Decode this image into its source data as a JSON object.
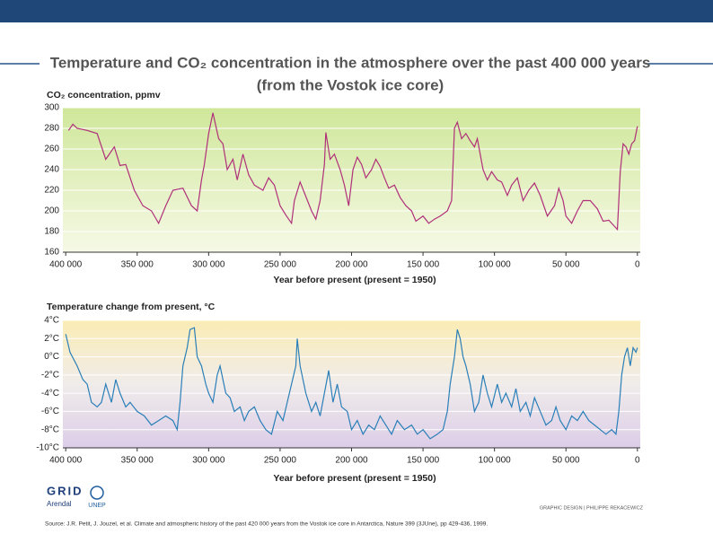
{
  "header": {
    "title": "Temperature and CO₂ concentration in the atmosphere over the past 400 000 years",
    "subtitle": "(from the Vostok ice core)"
  },
  "chart_data": [
    {
      "type": "line",
      "y_label": "CO₂ concentration, ppmv",
      "x_label": "Year before present (present = 1950)",
      "color": "#b0307a",
      "grid": true,
      "xlim": [
        402000,
        -2000
      ],
      "ylim": [
        160,
        300
      ],
      "xticks": [
        {
          "value": 400000,
          "label": "400 000"
        },
        {
          "value": 350000,
          "label": "350 000"
        },
        {
          "value": 300000,
          "label": "300 000"
        },
        {
          "value": 250000,
          "label": "250 000"
        },
        {
          "value": 200000,
          "label": "200 000"
        },
        {
          "value": 150000,
          "label": "150 000"
        },
        {
          "value": 100000,
          "label": "100 000"
        },
        {
          "value": 50000,
          "label": "50 000"
        },
        0
      ],
      "yticks": [
        160,
        180,
        200,
        220,
        240,
        260,
        280,
        300
      ],
      "x": [
        398000,
        395000,
        392000,
        385000,
        378000,
        372000,
        366000,
        362000,
        358000,
        352000,
        346000,
        340000,
        335000,
        330000,
        325000,
        318000,
        312000,
        308000,
        305000,
        303000,
        300000,
        297000,
        293000,
        290000,
        287000,
        283000,
        280000,
        276000,
        272000,
        268000,
        262000,
        258000,
        254000,
        250000,
        246000,
        242000,
        240000,
        236000,
        232000,
        228000,
        225000,
        222000,
        219000,
        218000,
        215000,
        212000,
        208000,
        205000,
        202000,
        199000,
        196000,
        193000,
        190000,
        186000,
        183000,
        180000,
        177000,
        174000,
        170000,
        166000,
        162000,
        158000,
        155000,
        150000,
        146000,
        142000,
        138000,
        133000,
        130000,
        128000,
        126000,
        123000,
        120000,
        117000,
        114000,
        112000,
        108000,
        105000,
        102000,
        98000,
        95000,
        91000,
        88000,
        84000,
        80000,
        76000,
        72000,
        68000,
        63000,
        58000,
        55000,
        52000,
        50000,
        46000,
        42000,
        38000,
        33000,
        28000,
        24000,
        20000,
        16000,
        14000,
        12000,
        10000,
        8000,
        6000,
        4000,
        2000,
        0
      ],
      "values": [
        278,
        284,
        280,
        278,
        275,
        250,
        262,
        244,
        245,
        220,
        205,
        200,
        188,
        205,
        220,
        222,
        205,
        200,
        230,
        245,
        275,
        295,
        270,
        265,
        240,
        250,
        230,
        255,
        235,
        225,
        220,
        232,
        225,
        205,
        196,
        188,
        210,
        228,
        214,
        200,
        192,
        210,
        245,
        276,
        250,
        255,
        240,
        225,
        205,
        240,
        252,
        245,
        232,
        240,
        250,
        243,
        232,
        222,
        225,
        213,
        205,
        200,
        190,
        195,
        188,
        192,
        195,
        200,
        210,
        280,
        286,
        270,
        275,
        268,
        262,
        270,
        240,
        230,
        238,
        230,
        228,
        215,
        225,
        232,
        210,
        220,
        227,
        215,
        195,
        205,
        222,
        210,
        195,
        188,
        200,
        210,
        210,
        202,
        190,
        191,
        185,
        182,
        238,
        265,
        262,
        255,
        265,
        268,
        282
      ]
    },
    {
      "type": "line",
      "y_label": "Temperature change from present, °C",
      "x_label": "Year before present (present = 1950)",
      "color": "#2a7fb8",
      "grid": true,
      "xlim": [
        402000,
        -2000
      ],
      "ylim": [
        -10,
        4
      ],
      "xticks": [
        {
          "value": 400000,
          "label": "400 000"
        },
        {
          "value": 350000,
          "label": "350 000"
        },
        {
          "value": 300000,
          "label": "300 000"
        },
        {
          "value": 250000,
          "label": "250 000"
        },
        {
          "value": 200000,
          "label": "200 000"
        },
        {
          "value": 150000,
          "label": "150 000"
        },
        {
          "value": 100000,
          "label": "100 000"
        },
        {
          "value": 50000,
          "label": "50 000"
        },
        0
      ],
      "yticks": [
        {
          "value": 4,
          "label": "4°C"
        },
        {
          "value": 2,
          "label": "2°C"
        },
        {
          "value": 0,
          "label": "0°C"
        },
        {
          "value": -2,
          "label": "-2°C"
        },
        {
          "value": -4,
          "label": "-4°C"
        },
        {
          "value": -6,
          "label": "-6°C"
        },
        {
          "value": -8,
          "label": "-8°C"
        },
        {
          "value": -10,
          "label": "-10°C"
        }
      ],
      "x": [
        400000,
        397000,
        392000,
        388000,
        385000,
        382000,
        378000,
        375000,
        372000,
        368000,
        365000,
        362000,
        358000,
        355000,
        350000,
        345000,
        340000,
        335000,
        330000,
        325000,
        322000,
        320000,
        318000,
        315000,
        313000,
        310000,
        308000,
        305000,
        302000,
        300000,
        297000,
        294000,
        292000,
        288000,
        285000,
        282000,
        278000,
        275000,
        272000,
        268000,
        264000,
        260000,
        256000,
        252000,
        248000,
        245000,
        242000,
        239000,
        238000,
        236000,
        232000,
        228000,
        225000,
        222000,
        219000,
        216000,
        213000,
        210000,
        207000,
        203000,
        200000,
        196000,
        192000,
        188000,
        184000,
        180000,
        176000,
        172000,
        168000,
        163000,
        158000,
        154000,
        150000,
        145000,
        140000,
        136000,
        133000,
        131000,
        128000,
        126000,
        124000,
        122000,
        120000,
        117000,
        114000,
        111000,
        108000,
        105000,
        102000,
        98000,
        95000,
        92000,
        88000,
        85000,
        82000,
        78000,
        75000,
        72000,
        68000,
        64000,
        60000,
        57000,
        54000,
        50000,
        46000,
        42000,
        38000,
        34000,
        30000,
        26000,
        22000,
        18000,
        15000,
        13000,
        11000,
        9000,
        7000,
        5000,
        3000,
        1000,
        0
      ],
      "values": [
        2.5,
        0.5,
        -1,
        -2.5,
        -3,
        -5,
        -5.5,
        -5,
        -3,
        -5,
        -2.5,
        -4,
        -5.5,
        -5,
        -6,
        -6.5,
        -7.5,
        -7,
        -6.5,
        -7,
        -8,
        -5,
        -1,
        1,
        3,
        3.2,
        0,
        -1,
        -3,
        -4,
        -5,
        -2,
        -1,
        -4,
        -4.5,
        -6,
        -5.5,
        -7,
        -6,
        -5.5,
        -7,
        -8,
        -8.5,
        -6,
        -7,
        -5,
        -3,
        -1,
        2,
        -1,
        -4,
        -6,
        -5,
        -6.5,
        -4,
        -1.5,
        -5,
        -3,
        -5.5,
        -6,
        -8,
        -7,
        -8.5,
        -7.5,
        -8,
        -6.5,
        -7.5,
        -8.5,
        -7,
        -8,
        -7.5,
        -8.5,
        -8,
        -9,
        -8.5,
        -8,
        -6,
        -3,
        0,
        3,
        2,
        0,
        -1,
        -3,
        -6,
        -5,
        -2,
        -4,
        -5.5,
        -3,
        -5,
        -4,
        -5.5,
        -3.5,
        -6,
        -5,
        -6.5,
        -4.5,
        -6,
        -7.5,
        -7,
        -5.5,
        -7,
        -8,
        -6.5,
        -7,
        -6,
        -7,
        -7.5,
        -8,
        -8.5,
        -8,
        -8.5,
        -6,
        -2,
        0,
        1,
        -1,
        1,
        0.5,
        1
      ]
    }
  ],
  "logos": {
    "grid": "GRID",
    "arendal": "Arendal",
    "unep": "UNEP"
  },
  "credit": "GRAPHIC DESIGN | PHILIPPE REKACEWICZ",
  "source": "Source: J.R. Petit, J. Jouzel, et al. Climate and atmospheric history of the past 420 000 years from the Vostok ice core in Antarctica, Nature 399 (3JUne), pp 429-436, 1999."
}
